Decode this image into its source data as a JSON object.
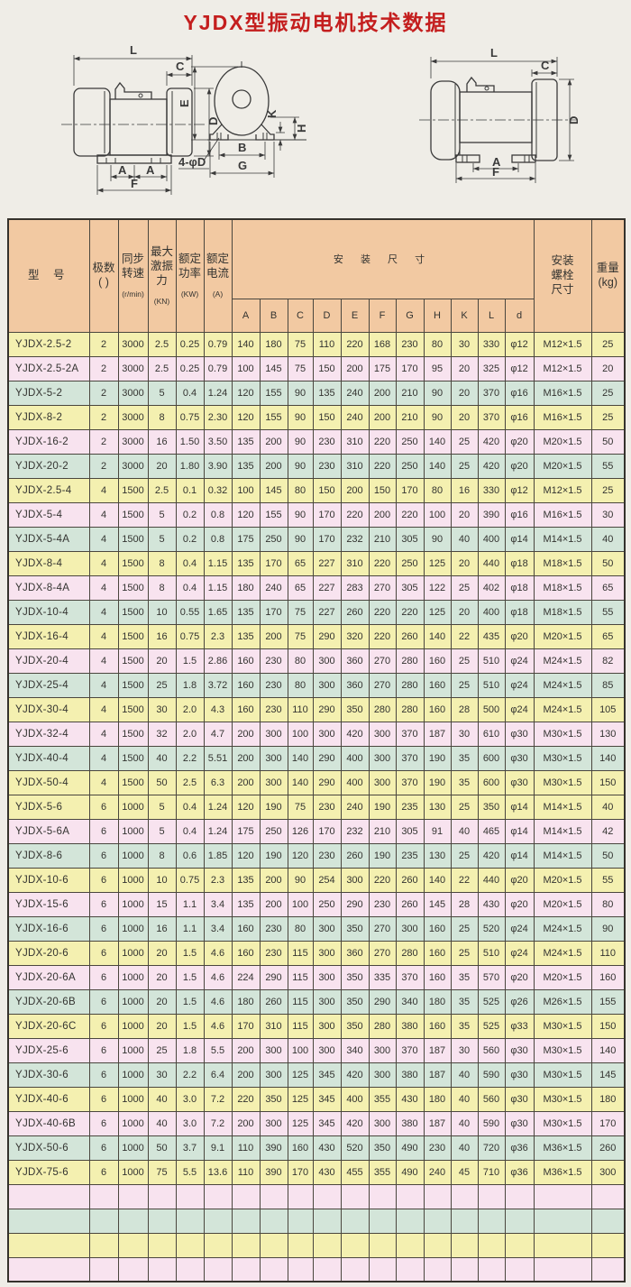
{
  "page": {
    "title": "YJDX型振动电机技术数据"
  },
  "colors": {
    "title": "#c41e1e",
    "header_bg": "#f2c9a2",
    "row_yellow": "#f4f0b0",
    "row_pink": "#f8e3ef",
    "row_green": "#d3e5d9",
    "border": "#4a463e",
    "outer": "#35322c",
    "ink": "#333330",
    "line": "#3a3a3a",
    "page_bg": "#efede7"
  },
  "diagram": {
    "labels": {
      "L": "L",
      "C": "C",
      "D": "D",
      "E": "E",
      "B": "B",
      "G": "G",
      "K": "K",
      "H": "H",
      "A": "A",
      "F": "F",
      "bolt_hole": "4-φD"
    }
  },
  "table": {
    "header": {
      "model": "型  号",
      "poles_l1": "极数",
      "poles_l2": "(  )",
      "speed_l1": "同步",
      "speed_l2": "转速",
      "speed_unit": "(r/min)",
      "force_l1": "最大",
      "force_l2": "激振",
      "force_l3": "力",
      "force_unit": "(KN)",
      "power_l1": "额定",
      "power_l2": "功率",
      "power_unit": "(KW)",
      "current_l1": "额定",
      "current_l2": "电流",
      "current_unit": "(A)",
      "mounting": "安 装 尺 寸",
      "dims": [
        "A",
        "B",
        "C",
        "D",
        "E",
        "F",
        "G",
        "H",
        "K",
        "L",
        "d"
      ],
      "bolt_l1": "安装",
      "bolt_l2": "螺栓",
      "bolt_l3": "尺寸",
      "weight_l1": "重量",
      "weight_l2": "(kg)"
    },
    "rows": [
      {
        "tint": "yellow",
        "cells": [
          "YJDX-2.5-2",
          "2",
          "3000",
          "2.5",
          "0.25",
          "0.79",
          "140",
          "180",
          "75",
          "110",
          "220",
          "168",
          "230",
          "80",
          "30",
          "330",
          "φ12",
          "M12×1.5",
          "25"
        ]
      },
      {
        "tint": "pink",
        "cells": [
          "YJDX-2.5-2A",
          "2",
          "3000",
          "2.5",
          "0.25",
          "0.79",
          "100",
          "145",
          "75",
          "150",
          "200",
          "175",
          "170",
          "95",
          "20",
          "325",
          "φ12",
          "M12×1.5",
          "20"
        ]
      },
      {
        "tint": "green",
        "cells": [
          "YJDX-5-2",
          "2",
          "3000",
          "5",
          "0.4",
          "1.24",
          "120",
          "155",
          "90",
          "135",
          "240",
          "200",
          "210",
          "90",
          "20",
          "370",
          "φ16",
          "M16×1.5",
          "25"
        ]
      },
      {
        "tint": "yellow",
        "cells": [
          "YJDX-8-2",
          "2",
          "3000",
          "8",
          "0.75",
          "2.30",
          "120",
          "155",
          "90",
          "150",
          "240",
          "200",
          "210",
          "90",
          "20",
          "370",
          "φ16",
          "M16×1.5",
          "25"
        ]
      },
      {
        "tint": "pink",
        "cells": [
          "YJDX-16-2",
          "2",
          "3000",
          "16",
          "1.50",
          "3.50",
          "135",
          "200",
          "90",
          "230",
          "310",
          "220",
          "250",
          "140",
          "25",
          "420",
          "φ20",
          "M20×1.5",
          "50"
        ]
      },
      {
        "tint": "green",
        "cells": [
          "YJDX-20-2",
          "2",
          "3000",
          "20",
          "1.80",
          "3.90",
          "135",
          "200",
          "90",
          "230",
          "310",
          "220",
          "250",
          "140",
          "25",
          "420",
          "φ20",
          "M20×1.5",
          "55"
        ]
      },
      {
        "tint": "yellow",
        "cells": [
          "YJDX-2.5-4",
          "4",
          "1500",
          "2.5",
          "0.1",
          "0.32",
          "100",
          "145",
          "80",
          "150",
          "200",
          "150",
          "170",
          "80",
          "16",
          "330",
          "φ12",
          "M12×1.5",
          "25"
        ]
      },
      {
        "tint": "pink",
        "cells": [
          "YJDX-5-4",
          "4",
          "1500",
          "5",
          "0.2",
          "0.8",
          "120",
          "155",
          "90",
          "170",
          "220",
          "200",
          "220",
          "100",
          "20",
          "390",
          "φ16",
          "M16×1.5",
          "30"
        ]
      },
      {
        "tint": "green",
        "cells": [
          "YJDX-5-4A",
          "4",
          "1500",
          "5",
          "0.2",
          "0.8",
          "175",
          "250",
          "90",
          "170",
          "232",
          "210",
          "305",
          "90",
          "40",
          "400",
          "φ14",
          "M14×1.5",
          "40"
        ]
      },
      {
        "tint": "yellow",
        "cells": [
          "YJDX-8-4",
          "4",
          "1500",
          "8",
          "0.4",
          "1.15",
          "135",
          "170",
          "65",
          "227",
          "310",
          "220",
          "250",
          "125",
          "20",
          "440",
          "φ18",
          "M18×1.5",
          "50"
        ]
      },
      {
        "tint": "pink",
        "cells": [
          "YJDX-8-4A",
          "4",
          "1500",
          "8",
          "0.4",
          "1.15",
          "180",
          "240",
          "65",
          "227",
          "283",
          "270",
          "305",
          "122",
          "25",
          "402",
          "φ18",
          "M18×1.5",
          "65"
        ]
      },
      {
        "tint": "green",
        "cells": [
          "YJDX-10-4",
          "4",
          "1500",
          "10",
          "0.55",
          "1.65",
          "135",
          "170",
          "75",
          "227",
          "260",
          "220",
          "220",
          "125",
          "20",
          "400",
          "φ18",
          "M18×1.5",
          "55"
        ]
      },
      {
        "tint": "yellow",
        "cells": [
          "YJDX-16-4",
          "4",
          "1500",
          "16",
          "0.75",
          "2.3",
          "135",
          "200",
          "75",
          "290",
          "320",
          "220",
          "260",
          "140",
          "22",
          "435",
          "φ20",
          "M20×1.5",
          "65"
        ]
      },
      {
        "tint": "pink",
        "cells": [
          "YJDX-20-4",
          "4",
          "1500",
          "20",
          "1.5",
          "2.86",
          "160",
          "230",
          "80",
          "300",
          "360",
          "270",
          "280",
          "160",
          "25",
          "510",
          "φ24",
          "M24×1.5",
          "82"
        ]
      },
      {
        "tint": "green",
        "cells": [
          "YJDX-25-4",
          "4",
          "1500",
          "25",
          "1.8",
          "3.72",
          "160",
          "230",
          "80",
          "300",
          "360",
          "270",
          "280",
          "160",
          "25",
          "510",
          "φ24",
          "M24×1.5",
          "85"
        ]
      },
      {
        "tint": "yellow",
        "cells": [
          "YJDX-30-4",
          "4",
          "1500",
          "30",
          "2.0",
          "4.3",
          "160",
          "230",
          "110",
          "290",
          "350",
          "280",
          "280",
          "160",
          "28",
          "500",
          "φ24",
          "M24×1.5",
          "105"
        ]
      },
      {
        "tint": "pink",
        "cells": [
          "YJDX-32-4",
          "4",
          "1500",
          "32",
          "2.0",
          "4.7",
          "200",
          "300",
          "100",
          "300",
          "420",
          "300",
          "370",
          "187",
          "30",
          "610",
          "φ30",
          "M30×1.5",
          "130"
        ]
      },
      {
        "tint": "green",
        "cells": [
          "YJDX-40-4",
          "4",
          "1500",
          "40",
          "2.2",
          "5.51",
          "200",
          "300",
          "140",
          "290",
          "400",
          "300",
          "370",
          "190",
          "35",
          "600",
          "φ30",
          "M30×1.5",
          "140"
        ]
      },
      {
        "tint": "yellow",
        "cells": [
          "YJDX-50-4",
          "4",
          "1500",
          "50",
          "2.5",
          "6.3",
          "200",
          "300",
          "140",
          "290",
          "400",
          "300",
          "370",
          "190",
          "35",
          "600",
          "φ30",
          "M30×1.5",
          "150"
        ]
      },
      {
        "tint": "yellow",
        "cells": [
          "YJDX-5-6",
          "6",
          "1000",
          "5",
          "0.4",
          "1.24",
          "120",
          "190",
          "75",
          "230",
          "240",
          "190",
          "235",
          "130",
          "25",
          "350",
          "φ14",
          "M14×1.5",
          "40"
        ]
      },
      {
        "tint": "pink",
        "cells": [
          "YJDX-5-6A",
          "6",
          "1000",
          "5",
          "0.4",
          "1.24",
          "175",
          "250",
          "126",
          "170",
          "232",
          "210",
          "305",
          "91",
          "40",
          "465",
          "φ14",
          "M14×1.5",
          "42"
        ]
      },
      {
        "tint": "green",
        "cells": [
          "YJDX-8-6",
          "6",
          "1000",
          "8",
          "0.6",
          "1.85",
          "120",
          "190",
          "120",
          "230",
          "260",
          "190",
          "235",
          "130",
          "25",
          "420",
          "φ14",
          "M14×1.5",
          "50"
        ]
      },
      {
        "tint": "yellow",
        "cells": [
          "YJDX-10-6",
          "6",
          "1000",
          "10",
          "0.75",
          "2.3",
          "135",
          "200",
          "90",
          "254",
          "300",
          "220",
          "260",
          "140",
          "22",
          "440",
          "φ20",
          "M20×1.5",
          "55"
        ]
      },
      {
        "tint": "pink",
        "cells": [
          "YJDX-15-6",
          "6",
          "1000",
          "15",
          "1.1",
          "3.4",
          "135",
          "200",
          "100",
          "250",
          "290",
          "230",
          "260",
          "145",
          "28",
          "430",
          "φ20",
          "M20×1.5",
          "80"
        ]
      },
      {
        "tint": "green",
        "cells": [
          "YJDX-16-6",
          "6",
          "1000",
          "16",
          "1.1",
          "3.4",
          "160",
          "230",
          "80",
          "300",
          "350",
          "270",
          "300",
          "160",
          "25",
          "520",
          "φ24",
          "M24×1.5",
          "90"
        ]
      },
      {
        "tint": "yellow",
        "cells": [
          "YJDX-20-6",
          "6",
          "1000",
          "20",
          "1.5",
          "4.6",
          "160",
          "230",
          "115",
          "300",
          "360",
          "270",
          "280",
          "160",
          "25",
          "510",
          "φ24",
          "M24×1.5",
          "110"
        ]
      },
      {
        "tint": "pink",
        "cells": [
          "YJDX-20-6A",
          "6",
          "1000",
          "20",
          "1.5",
          "4.6",
          "224",
          "290",
          "115",
          "300",
          "350",
          "335",
          "370",
          "160",
          "35",
          "570",
          "φ20",
          "M20×1.5",
          "160"
        ]
      },
      {
        "tint": "green",
        "cells": [
          "YJDX-20-6B",
          "6",
          "1000",
          "20",
          "1.5",
          "4.6",
          "180",
          "260",
          "115",
          "300",
          "350",
          "290",
          "340",
          "180",
          "35",
          "525",
          "φ26",
          "M26×1.5",
          "155"
        ]
      },
      {
        "tint": "yellow",
        "cells": [
          "YJDX-20-6C",
          "6",
          "1000",
          "20",
          "1.5",
          "4.6",
          "170",
          "310",
          "115",
          "300",
          "350",
          "280",
          "380",
          "160",
          "35",
          "525",
          "φ33",
          "M30×1.5",
          "150"
        ]
      },
      {
        "tint": "pink",
        "cells": [
          "YJDX-25-6",
          "6",
          "1000",
          "25",
          "1.8",
          "5.5",
          "200",
          "300",
          "100",
          "300",
          "340",
          "300",
          "370",
          "187",
          "30",
          "560",
          "φ30",
          "M30×1.5",
          "140"
        ]
      },
      {
        "tint": "green",
        "cells": [
          "YJDX-30-6",
          "6",
          "1000",
          "30",
          "2.2",
          "6.4",
          "200",
          "300",
          "125",
          "345",
          "420",
          "300",
          "380",
          "187",
          "40",
          "590",
          "φ30",
          "M30×1.5",
          "145"
        ]
      },
      {
        "tint": "yellow",
        "cells": [
          "YJDX-40-6",
          "6",
          "1000",
          "40",
          "3.0",
          "7.2",
          "220",
          "350",
          "125",
          "345",
          "400",
          "355",
          "430",
          "180",
          "40",
          "560",
          "φ30",
          "M30×1.5",
          "180"
        ]
      },
      {
        "tint": "pink",
        "cells": [
          "YJDX-40-6B",
          "6",
          "1000",
          "40",
          "3.0",
          "7.2",
          "200",
          "300",
          "125",
          "345",
          "420",
          "300",
          "380",
          "187",
          "40",
          "590",
          "φ30",
          "M30×1.5",
          "170"
        ]
      },
      {
        "tint": "green",
        "cells": [
          "YJDX-50-6",
          "6",
          "1000",
          "50",
          "3.7",
          "9.1",
          "110",
          "390",
          "160",
          "430",
          "520",
          "350",
          "490",
          "230",
          "40",
          "720",
          "φ36",
          "M36×1.5",
          "260"
        ]
      },
      {
        "tint": "yellow",
        "cells": [
          "YJDX-75-6",
          "6",
          "1000",
          "75",
          "5.5",
          "13.6",
          "110",
          "390",
          "170",
          "430",
          "455",
          "355",
          "490",
          "240",
          "45",
          "710",
          "φ36",
          "M36×1.5",
          "300"
        ]
      },
      {
        "tint": "pink",
        "cells": [
          "",
          "",
          "",
          "",
          "",
          "",
          "",
          "",
          "",
          "",
          "",
          "",
          "",
          "",
          "",
          "",
          "",
          "",
          ""
        ]
      },
      {
        "tint": "green",
        "cells": [
          "",
          "",
          "",
          "",
          "",
          "",
          "",
          "",
          "",
          "",
          "",
          "",
          "",
          "",
          "",
          "",
          "",
          "",
          ""
        ]
      },
      {
        "tint": "yellow",
        "cells": [
          "",
          "",
          "",
          "",
          "",
          "",
          "",
          "",
          "",
          "",
          "",
          "",
          "",
          "",
          "",
          "",
          "",
          "",
          ""
        ]
      },
      {
        "tint": "pink",
        "cells": [
          "",
          "",
          "",
          "",
          "",
          "",
          "",
          "",
          "",
          "",
          "",
          "",
          "",
          "",
          "",
          "",
          "",
          "",
          ""
        ]
      }
    ]
  }
}
